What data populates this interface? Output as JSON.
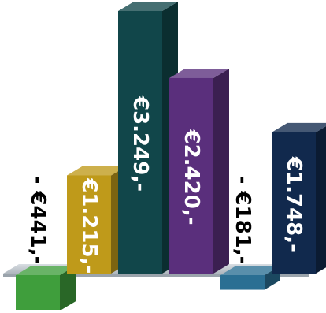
{
  "chart_data": {
    "type": "bar",
    "categories": [
      "",
      "",
      "",
      "",
      "",
      ""
    ],
    "values": [
      -441,
      1215,
      3249,
      2420,
      -181,
      1748
    ],
    "data_labels": [
      "- €441,-",
      "€1.215,-",
      "€3.249,-",
      "€2.420,-",
      "- €181,-",
      "€1.748,-"
    ],
    "colors": [
      "#3f9e3c",
      "#bf9a1a",
      "#11464a",
      "#5a2f7c",
      "#2a6f93",
      "#11294d"
    ],
    "title": "",
    "xlabel": "",
    "ylabel": "",
    "ylim": [
      -441,
      3249
    ],
    "grid": false,
    "legend": "none",
    "style": "3d"
  }
}
